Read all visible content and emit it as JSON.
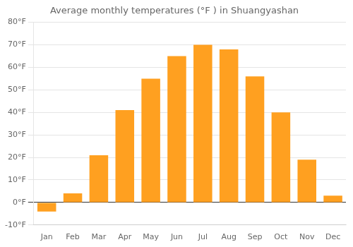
{
  "chart_data": {
    "type": "bar",
    "title": "Average monthly temperatures (°F ) in Shuangyashan",
    "categories": [
      "Jan",
      "Feb",
      "Mar",
      "Apr",
      "May",
      "Jun",
      "Jul",
      "Aug",
      "Sep",
      "Oct",
      "Nov",
      "Dec"
    ],
    "values": [
      -4,
      4,
      21,
      41,
      55,
      65,
      70,
      68,
      56,
      40,
      19,
      3
    ],
    "color": "#FFA020",
    "ylim": [
      -10,
      80
    ],
    "yticks": [
      {
        "value": -10,
        "label": "-10°F"
      },
      {
        "value": 0,
        "label": "0°F"
      },
      {
        "value": 10,
        "label": "10°F"
      },
      {
        "value": 20,
        "label": "20°F"
      },
      {
        "value": 30,
        "label": "30°F"
      },
      {
        "value": 40,
        "label": "40°F"
      },
      {
        "value": 50,
        "label": "50°F"
      },
      {
        "value": 60,
        "label": "60°F"
      },
      {
        "value": 70,
        "label": "70°F"
      },
      {
        "value": 80,
        "label": "80°F"
      }
    ],
    "grid": true
  }
}
